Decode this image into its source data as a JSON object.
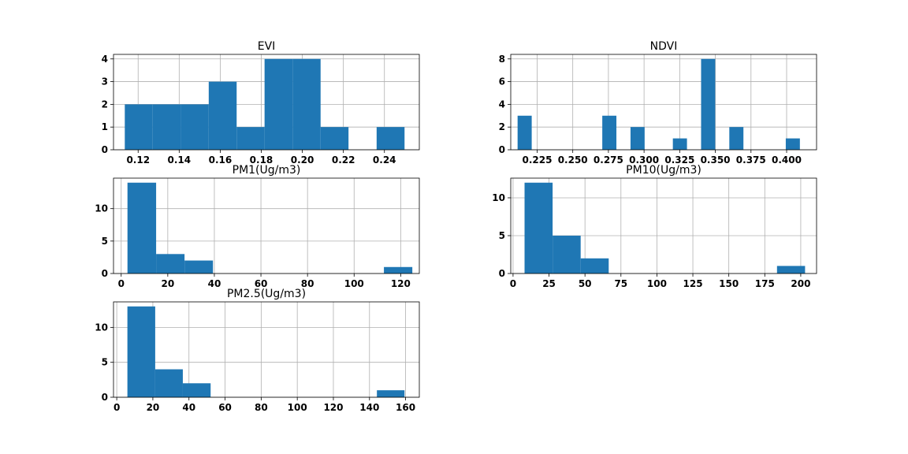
{
  "style": {
    "bar_color": "#1f77b4",
    "grid_color": "#b0b0b0",
    "background": "#ffffff"
  },
  "chart_data": [
    {
      "type": "bar",
      "title": "EVI",
      "xlabel": "",
      "ylabel": "",
      "grid": true,
      "xlim": [
        0.108,
        0.257
      ],
      "ylim": [
        0,
        4.2
      ],
      "xticks": [
        0.12,
        0.14,
        0.16,
        0.18,
        0.2,
        0.22,
        0.24
      ],
      "xtick_labels": [
        "0.12",
        "0.14",
        "0.16",
        "0.18",
        "0.20",
        "0.22",
        "0.24"
      ],
      "yticks": [
        0,
        1,
        2,
        3,
        4
      ],
      "ytick_labels": [
        "0",
        "1",
        "2",
        "3",
        "4"
      ],
      "bin_edges": [
        0.1135,
        0.1271,
        0.1408,
        0.1544,
        0.168,
        0.1816,
        0.1953,
        0.2089,
        0.2225,
        0.2362,
        0.2498
      ],
      "counts": [
        2,
        2,
        2,
        3,
        1,
        4,
        4,
        1,
        0,
        1
      ]
    },
    {
      "type": "bar",
      "title": "NDVI",
      "xlabel": "",
      "ylabel": "",
      "grid": true,
      "xlim": [
        0.2065,
        0.421
      ],
      "ylim": [
        0,
        8.4
      ],
      "xticks": [
        0.225,
        0.25,
        0.275,
        0.3,
        0.325,
        0.35,
        0.375,
        0.4
      ],
      "xtick_labels": [
        "0.225",
        "0.250",
        "0.275",
        "0.300",
        "0.325",
        "0.350",
        "0.375",
        "0.400"
      ],
      "yticks": [
        0,
        2,
        4,
        6,
        8
      ],
      "ytick_labels": [
        "0",
        "2",
        "4",
        "6",
        "8"
      ],
      "bin_edges": [
        0.2113,
        0.2212,
        0.2311,
        0.241,
        0.2509,
        0.2608,
        0.2707,
        0.2806,
        0.2905,
        0.3004,
        0.3103,
        0.3202,
        0.3301,
        0.34,
        0.3499,
        0.3598,
        0.3697,
        0.3796,
        0.3895,
        0.3994,
        0.4093
      ],
      "counts": [
        3,
        0,
        0,
        0,
        0,
        0,
        3,
        0,
        2,
        0,
        0,
        1,
        0,
        8,
        0,
        2,
        0,
        0,
        0,
        1
      ]
    },
    {
      "type": "bar",
      "title": "PM1(Ug/m3)",
      "xlabel": "",
      "ylabel": "",
      "grid": true,
      "xlim": [
        -3.3,
        128.0
      ],
      "ylim": [
        0,
        14.7
      ],
      "xticks": [
        0,
        20,
        40,
        60,
        80,
        100,
        120
      ],
      "xtick_labels": [
        "0",
        "20",
        "40",
        "60",
        "80",
        "100",
        "120"
      ],
      "yticks": [
        0,
        5,
        10
      ],
      "ytick_labels": [
        "0",
        "5",
        "10"
      ],
      "bin_edges": [
        2.7,
        15.0,
        27.2,
        39.4,
        51.6,
        63.9,
        76.1,
        88.3,
        100.5,
        112.8,
        125.0
      ],
      "counts": [
        14,
        3,
        2,
        0,
        0,
        0,
        0,
        0,
        0,
        1
      ]
    },
    {
      "type": "bar",
      "title": "PM10(Ug/m3)",
      "xlabel": "",
      "ylabel": "",
      "grid": true,
      "xlim": [
        -1.6,
        211.0
      ],
      "ylim": [
        0,
        12.6
      ],
      "xticks": [
        0,
        25,
        50,
        75,
        100,
        125,
        150,
        175,
        200
      ],
      "xtick_labels": [
        "0",
        "25",
        "50",
        "75",
        "100",
        "125",
        "150",
        "175",
        "200"
      ],
      "yticks": [
        0,
        5,
        10
      ],
      "ytick_labels": [
        "0",
        "5",
        "10"
      ],
      "bin_edges": [
        8.0,
        27.5,
        47.0,
        66.5,
        86.0,
        105.5,
        125.0,
        144.5,
        164.0,
        183.5,
        203.0
      ],
      "counts": [
        12,
        5,
        2,
        0,
        0,
        0,
        0,
        0,
        0,
        1
      ]
    },
    {
      "type": "bar",
      "title": "PM2.5(Ug/m3)",
      "xlabel": "",
      "ylabel": "",
      "grid": true,
      "xlim": [
        -1.8,
        167.6
      ],
      "ylim": [
        0,
        13.65
      ],
      "xticks": [
        0,
        20,
        40,
        60,
        80,
        100,
        120,
        140,
        160
      ],
      "xtick_labels": [
        "0",
        "20",
        "40",
        "60",
        "80",
        "100",
        "120",
        "140",
        "160"
      ],
      "yticks": [
        0,
        5,
        10
      ],
      "ytick_labels": [
        "0",
        "5",
        "10"
      ],
      "bin_edges": [
        5.9,
        21.3,
        36.6,
        52.0,
        67.3,
        82.7,
        98.0,
        113.4,
        128.7,
        144.1,
        159.4
      ],
      "counts": [
        13,
        4,
        2,
        0,
        0,
        0,
        0,
        0,
        0,
        1
      ]
    }
  ]
}
